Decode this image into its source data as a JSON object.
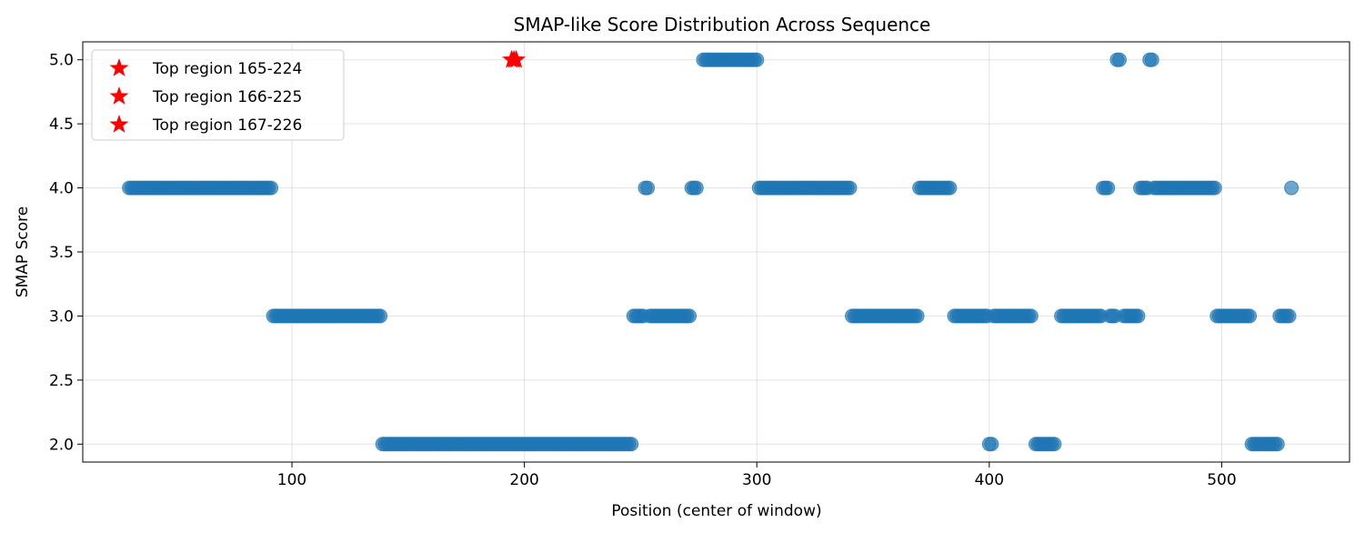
{
  "chart_data": {
    "type": "scatter",
    "title": "SMAP-like Score Distribution Across Sequence",
    "xlabel": "Position (center of window)",
    "ylabel": "SMAP Score",
    "xlim": [
      10,
      555
    ],
    "ylim": [
      1.86,
      5.14
    ],
    "xticks": [
      100,
      200,
      300,
      400,
      500
    ],
    "yticks": [
      2.0,
      2.5,
      3.0,
      3.5,
      4.0,
      4.5,
      5.0
    ],
    "ytick_labels": [
      "2.0",
      "2.5",
      "3.0",
      "3.5",
      "4.0",
      "4.5",
      "5.0"
    ],
    "grid": true,
    "legend_position": "top-left",
    "series": [
      {
        "name": "",
        "color": "#1f77b4",
        "marker": "circle",
        "points": [
          {
            "x_from": 30,
            "x_to": 91,
            "y": 4.0
          },
          {
            "x_from": 92,
            "x_to": 138,
            "y": 3.0
          },
          {
            "x_from": 139,
            "x_to": 246,
            "y": 2.0
          },
          {
            "x_from": 247,
            "x_to": 251,
            "y": 3.0
          },
          {
            "x_from": 252,
            "x_to": 253,
            "y": 4.0
          },
          {
            "x_from": 254,
            "x_to": 271,
            "y": 3.0
          },
          {
            "x_from": 272,
            "x_to": 274,
            "y": 4.0
          },
          {
            "x_from": 277,
            "x_to": 300,
            "y": 5.0
          },
          {
            "x_from": 301,
            "x_to": 340,
            "y": 4.0
          },
          {
            "x_from": 341,
            "x_to": 369,
            "y": 3.0
          },
          {
            "x_from": 370,
            "x_to": 383,
            "y": 4.0
          },
          {
            "x_from": 385,
            "x_to": 399,
            "y": 3.0
          },
          {
            "x_from": 400,
            "x_to": 401,
            "y": 2.0
          },
          {
            "x_from": 402,
            "x_to": 418,
            "y": 3.0
          },
          {
            "x_from": 420,
            "x_to": 428,
            "y": 2.0
          },
          {
            "x_from": 431,
            "x_to": 448,
            "y": 3.0
          },
          {
            "x_from": 449,
            "x_to": 451,
            "y": 4.0
          },
          {
            "x_from": 452,
            "x_to": 454,
            "y": 3.0
          },
          {
            "x_from": 455,
            "x_to": 456,
            "y": 5.0
          },
          {
            "x_from": 458,
            "x_to": 464,
            "y": 3.0
          },
          {
            "x_from": 465,
            "x_to": 468,
            "y": 4.0
          },
          {
            "x_from": 469,
            "x_to": 470,
            "y": 5.0
          },
          {
            "x_from": 471,
            "x_to": 497,
            "y": 4.0
          },
          {
            "x_from": 498,
            "x_to": 512,
            "y": 3.0
          },
          {
            "x_from": 513,
            "x_to": 524,
            "y": 2.0
          },
          {
            "x_from": 525,
            "x_to": 529,
            "y": 3.0
          },
          {
            "x_from": 530,
            "x_to": 530,
            "y": 4.0
          }
        ]
      },
      {
        "name": "Top region 165-224",
        "color": "#ff0000",
        "marker": "star",
        "points": [
          {
            "x": 194.5,
            "y": 5.0
          }
        ]
      },
      {
        "name": "Top region 166-225",
        "color": "#ff0000",
        "marker": "star",
        "points": [
          {
            "x": 195.5,
            "y": 5.0
          }
        ]
      },
      {
        "name": "Top region 167-226",
        "color": "#ff0000",
        "marker": "star",
        "points": [
          {
            "x": 196.5,
            "y": 5.0
          }
        ]
      }
    ]
  }
}
